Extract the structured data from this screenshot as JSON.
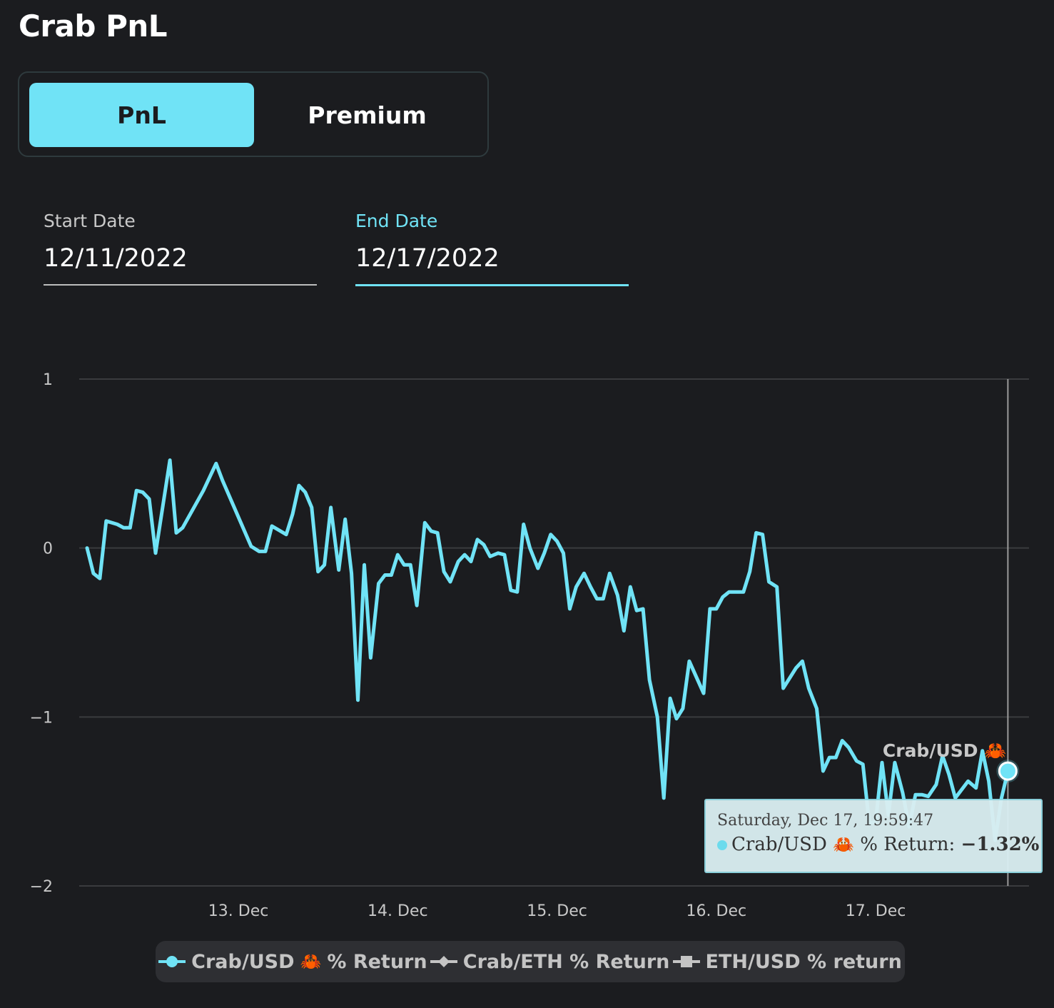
{
  "header": {
    "title": "Crab PnL"
  },
  "tabs": [
    {
      "label": "PnL",
      "active": true
    },
    {
      "label": "Premium",
      "active": false
    }
  ],
  "filters": {
    "start": {
      "label": "Start Date",
      "value": "12/11/2022"
    },
    "end": {
      "label": "End Date",
      "value": "12/17/2022"
    }
  },
  "tooltip": {
    "date": "Saturday, Dec 17, 19:59:47",
    "series": "Crab/USD",
    "crab_icon": "🦀",
    "metric": "% Return: ",
    "value": "−1.32%"
  },
  "colors": {
    "accent": "#70e3f6",
    "background": "#1b1c1f",
    "grid": "#3a3b3e"
  },
  "chart_data": {
    "type": "line",
    "title": "",
    "xlabel": "",
    "ylabel": "",
    "ylim": [
      -2,
      1
    ],
    "y_ticks": [
      1,
      0,
      -1,
      -2
    ],
    "y_tick_labels": [
      "1",
      "0",
      "−1",
      "−2"
    ],
    "x_ticks": [
      {
        "x": 13,
        "label": "13. Dec"
      },
      {
        "x": 14,
        "label": "14. Dec"
      },
      {
        "x": 15,
        "label": "15. Dec"
      },
      {
        "x": 16,
        "label": "16. Dec"
      },
      {
        "x": 17,
        "label": "17. Dec"
      }
    ],
    "x_range": [
      12.05,
      17.9
    ],
    "grid": "horizontal",
    "hover_label": "Crab/USD 🦀",
    "legend": [
      {
        "name": "Crab/USD",
        "icon": "🦀",
        "suffix": "% Return",
        "symbol": "circle",
        "color": "#70e3f6"
      },
      {
        "name": "Crab/ETH % Return",
        "symbol": "diamond",
        "color": "#c4c4c4"
      },
      {
        "name": "ETH/USD % return",
        "symbol": "square",
        "color": "#c4c4c4"
      }
    ],
    "series": [
      {
        "name": "Crab/USD 🦀 % Return",
        "points": [
          [
            12.05,
            0.0
          ],
          [
            12.09,
            -0.15
          ],
          [
            12.13,
            -0.18
          ],
          [
            12.17,
            0.16
          ],
          [
            12.24,
            0.14
          ],
          [
            12.28,
            0.12
          ],
          [
            12.32,
            0.12
          ],
          [
            12.36,
            0.34
          ],
          [
            12.4,
            0.33
          ],
          [
            12.44,
            0.29
          ],
          [
            12.48,
            -0.03
          ],
          [
            12.57,
            0.52
          ],
          [
            12.61,
            0.09
          ],
          [
            12.65,
            0.12
          ],
          [
            12.78,
            0.34
          ],
          [
            12.86,
            0.5
          ],
          [
            12.9,
            0.4
          ],
          [
            13.08,
            0.01
          ],
          [
            13.13,
            -0.02
          ],
          [
            13.17,
            -0.02
          ],
          [
            13.21,
            0.13
          ],
          [
            13.3,
            0.08
          ],
          [
            13.34,
            0.2
          ],
          [
            13.38,
            0.37
          ],
          [
            13.42,
            0.33
          ],
          [
            13.46,
            0.24
          ],
          [
            13.5,
            -0.14
          ],
          [
            13.54,
            -0.1
          ],
          [
            13.58,
            0.24
          ],
          [
            13.63,
            -0.13
          ],
          [
            13.67,
            0.17
          ],
          [
            13.71,
            -0.15
          ],
          [
            13.75,
            -0.9
          ],
          [
            13.79,
            -0.1
          ],
          [
            13.83,
            -0.65
          ],
          [
            13.88,
            -0.21
          ],
          [
            13.92,
            -0.16
          ],
          [
            13.96,
            -0.16
          ],
          [
            14.0,
            -0.04
          ],
          [
            14.04,
            -0.1
          ],
          [
            14.08,
            -0.1
          ],
          [
            14.12,
            -0.34
          ],
          [
            14.17,
            0.15
          ],
          [
            14.21,
            0.1
          ],
          [
            14.25,
            0.09
          ],
          [
            14.29,
            -0.14
          ],
          [
            14.33,
            -0.2
          ],
          [
            14.38,
            -0.08
          ],
          [
            14.42,
            -0.04
          ],
          [
            14.46,
            -0.08
          ],
          [
            14.5,
            0.05
          ],
          [
            14.54,
            0.02
          ],
          [
            14.58,
            -0.05
          ],
          [
            14.63,
            -0.03
          ],
          [
            14.67,
            -0.04
          ],
          [
            14.71,
            -0.25
          ],
          [
            14.75,
            -0.26
          ],
          [
            14.79,
            0.14
          ],
          [
            14.83,
            0.0
          ],
          [
            14.88,
            -0.12
          ],
          [
            14.92,
            -0.03
          ],
          [
            14.96,
            0.08
          ],
          [
            15.0,
            0.04
          ],
          [
            15.04,
            -0.03
          ],
          [
            15.08,
            -0.36
          ],
          [
            15.12,
            -0.23
          ],
          [
            15.17,
            -0.15
          ],
          [
            15.21,
            -0.23
          ],
          [
            15.25,
            -0.3
          ],
          [
            15.29,
            -0.3
          ],
          [
            15.33,
            -0.15
          ],
          [
            15.38,
            -0.28
          ],
          [
            15.42,
            -0.49
          ],
          [
            15.46,
            -0.23
          ],
          [
            15.5,
            -0.37
          ],
          [
            15.54,
            -0.36
          ],
          [
            15.58,
            -0.78
          ],
          [
            15.63,
            -1.0
          ],
          [
            15.67,
            -1.48
          ],
          [
            15.71,
            -0.89
          ],
          [
            15.75,
            -1.01
          ],
          [
            15.79,
            -0.95
          ],
          [
            15.83,
            -0.67
          ],
          [
            15.92,
            -0.86
          ],
          [
            15.96,
            -0.36
          ],
          [
            16.0,
            -0.36
          ],
          [
            16.04,
            -0.29
          ],
          [
            16.08,
            -0.26
          ],
          [
            16.17,
            -0.26
          ],
          [
            16.21,
            -0.14
          ],
          [
            16.25,
            0.09
          ],
          [
            16.29,
            0.08
          ],
          [
            16.33,
            -0.2
          ],
          [
            16.38,
            -0.23
          ],
          [
            16.42,
            -0.83
          ],
          [
            16.5,
            -0.71
          ],
          [
            16.54,
            -0.67
          ],
          [
            16.58,
            -0.83
          ],
          [
            16.63,
            -0.95
          ],
          [
            16.67,
            -1.32
          ],
          [
            16.71,
            -1.24
          ],
          [
            16.75,
            -1.24
          ],
          [
            16.79,
            -1.14
          ],
          [
            16.83,
            -1.18
          ],
          [
            16.88,
            -1.26
          ],
          [
            16.92,
            -1.28
          ],
          [
            16.96,
            -1.63
          ],
          [
            17.0,
            -1.62
          ],
          [
            17.04,
            -1.27
          ],
          [
            17.08,
            -1.58
          ],
          [
            17.12,
            -1.27
          ],
          [
            17.17,
            -1.45
          ],
          [
            17.21,
            -1.65
          ],
          [
            17.25,
            -1.46
          ],
          [
            17.29,
            -1.46
          ],
          [
            17.33,
            -1.47
          ],
          [
            17.38,
            -1.4
          ],
          [
            17.42,
            -1.23
          ],
          [
            17.46,
            -1.34
          ],
          [
            17.5,
            -1.48
          ],
          [
            17.58,
            -1.38
          ],
          [
            17.63,
            -1.42
          ],
          [
            17.67,
            -1.2
          ],
          [
            17.71,
            -1.38
          ],
          [
            17.75,
            -1.73
          ],
          [
            17.79,
            -1.48
          ],
          [
            17.83,
            -1.32
          ]
        ]
      }
    ]
  }
}
